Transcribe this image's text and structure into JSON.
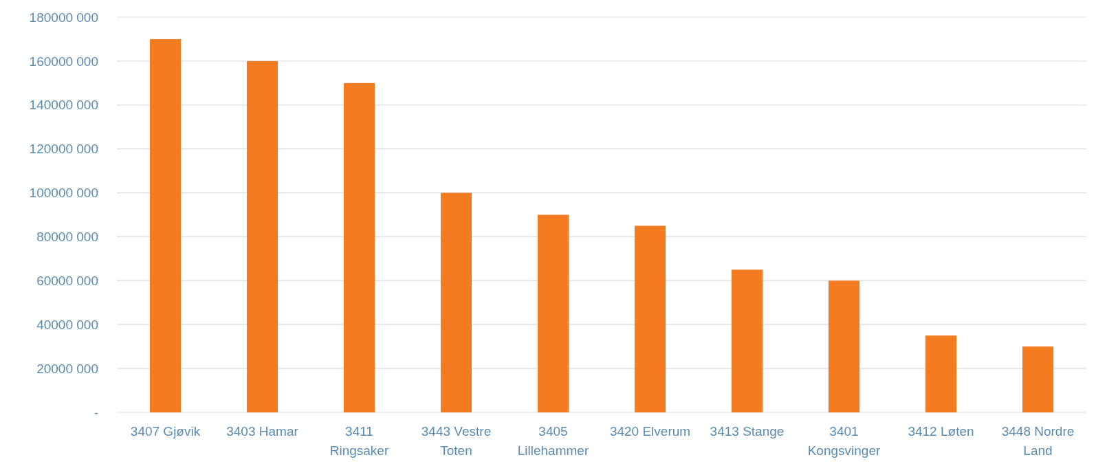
{
  "chart_data": {
    "type": "bar",
    "categories": [
      "3407 Gjøvik",
      "3403 Hamar",
      "3411 Ringsaker",
      "3443 Vestre Toten",
      "3405 Lillehammer",
      "3420 Elverum",
      "3413 Stange",
      "3401 Kongsvinger",
      "3412 Løten",
      "3448 Nordre Land"
    ],
    "values": [
      170000000,
      160000000,
      150000000,
      100000000,
      90000000,
      85000000,
      65000000,
      60000000,
      35000000,
      30000000
    ],
    "color": "#f47b20",
    "ylim": [
      0,
      180000000
    ],
    "yticks": [
      {
        "value": 0,
        "label": "-"
      },
      {
        "value": 20000000,
        "label": "20000 000"
      },
      {
        "value": 40000000,
        "label": "40000 000"
      },
      {
        "value": 60000000,
        "label": "60000 000"
      },
      {
        "value": 80000000,
        "label": "80000 000"
      },
      {
        "value": 100000000,
        "label": "100000 000"
      },
      {
        "value": 120000000,
        "label": "120000 000"
      },
      {
        "value": 140000000,
        "label": "140000 000"
      },
      {
        "value": 160000000,
        "label": "160000 000"
      },
      {
        "value": 180000000,
        "label": "180000 000"
      }
    ],
    "grid": "y"
  }
}
